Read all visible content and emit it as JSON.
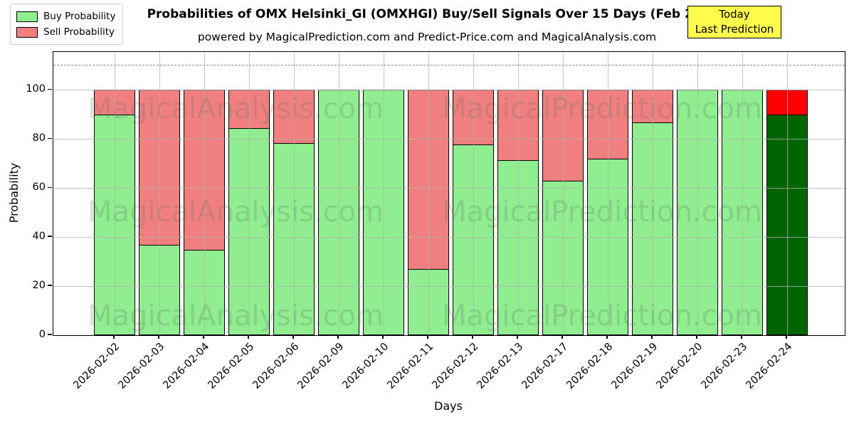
{
  "header": {
    "title": "Probabilities of OMX Helsinki_GI (OMXHGI) Buy/Sell Signals Over 15 Days (Feb 25)",
    "subtitle": "powered by MagicalPrediction.com and Predict-Price.com and MagicalAnalysis.com"
  },
  "legend": {
    "items": [
      {
        "label": "Buy Probability",
        "color": "#90EE90"
      },
      {
        "label": "Sell Probability",
        "color": "#F08080"
      }
    ]
  },
  "annotation_box": {
    "line1": "Today",
    "line2": "Last Prediction",
    "bg_color": "#FFFB4D"
  },
  "axes": {
    "xlabel": "Days",
    "ylabel": "Probability",
    "yticks": [
      0,
      20,
      40,
      60,
      80,
      100
    ]
  },
  "watermarks": {
    "left": "MagicalAnalysis.com",
    "right": "MagicalPrediction.com"
  },
  "colors": {
    "buy": "#90EE90",
    "sell": "#F08080",
    "today_buy": "#006400",
    "today_sell": "#FF0000",
    "bar_edge": "#000000",
    "grid": "#B0B0B0",
    "dashed_line": "#8A8A8A"
  },
  "chart_data": {
    "type": "bar",
    "stacked": true,
    "title": "Probabilities of OMX Helsinki_GI (OMXHGI) Buy/Sell Signals Over 15 Days (Feb 25)",
    "xlabel": "Days",
    "ylabel": "Probability",
    "ylim": [
      0,
      115.5
    ],
    "yticks": [
      0,
      20,
      40,
      60,
      80,
      100
    ],
    "grid": true,
    "legend_position": "upper left",
    "dashed_line_y": 110,
    "categories": [
      "2026-02-02",
      "2026-02-03",
      "2026-02-04",
      "2026-02-05",
      "2026-02-06",
      "2026-02-09",
      "2026-02-10",
      "2026-02-11",
      "2026-02-12",
      "2026-02-13",
      "2026-02-17",
      "2026-02-18",
      "2026-02-19",
      "2026-02-20",
      "2026-02-23",
      "2026-02-24"
    ],
    "series": [
      {
        "name": "Buy Probability",
        "color": "#90EE90",
        "values": [
          90,
          37,
          35,
          84.5,
          78.5,
          100,
          100,
          27,
          78,
          71.5,
          63,
          72,
          87,
          100,
          100,
          90
        ]
      },
      {
        "name": "Sell Probability",
        "color": "#F08080",
        "values": [
          10,
          63,
          65,
          15.5,
          21.5,
          0,
          0,
          73,
          22,
          28.5,
          37,
          28,
          13,
          0,
          0,
          10
        ]
      }
    ],
    "last_bar_is_today": true,
    "last_bar_colors": {
      "buy": "#006400",
      "sell": "#FF0000"
    }
  }
}
